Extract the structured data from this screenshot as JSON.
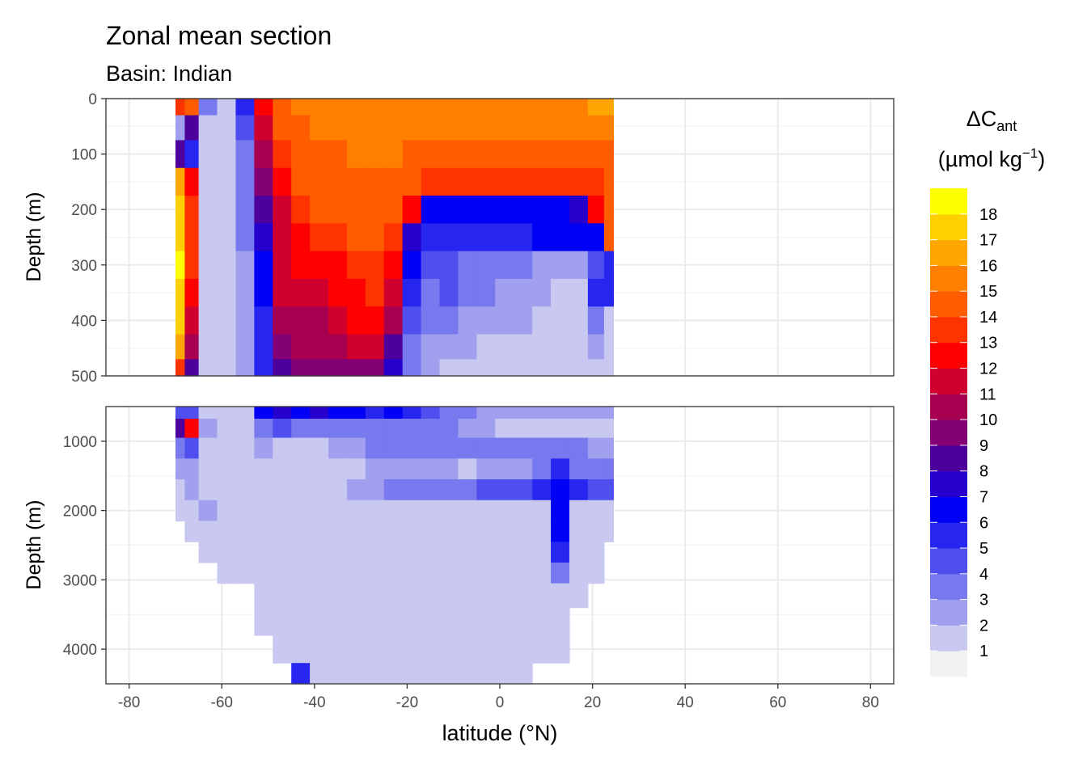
{
  "chart_data": {
    "type": "heatmap",
    "title": "Zonal mean section",
    "subtitle": "Basin: Indian",
    "xlabel": "latitude (°N)",
    "ylabel": "Depth (m)",
    "xlim": [
      -85,
      85
    ],
    "x_ticks": [
      -80,
      -60,
      -40,
      -20,
      0,
      20,
      40,
      60,
      80
    ],
    "panels": [
      {
        "ylim": [
          0,
          500
        ],
        "y_ticks": [
          0,
          100,
          200,
          300,
          400,
          500
        ],
        "lat": [
          -69,
          -67,
          -63,
          -59,
          -55,
          -51,
          -47,
          -43,
          -39,
          -35,
          -31,
          -27,
          -23,
          -19,
          -15,
          -11,
          -7,
          -3,
          1,
          5,
          9,
          13,
          17,
          21,
          24
        ],
        "depth": [
          10,
          50,
          100,
          150,
          200,
          250,
          300,
          350,
          400,
          450,
          490
        ],
        "z": [
          [
            13,
            14,
            3,
            1,
            5,
            12,
            14,
            15,
            15,
            15,
            15,
            15,
            15,
            15,
            15,
            15,
            15,
            15,
            15,
            15,
            15,
            15,
            15,
            16,
            16
          ],
          [
            2,
            8,
            1,
            1,
            4,
            11,
            14,
            14,
            15,
            15,
            15,
            15,
            15,
            15,
            15,
            15,
            15,
            15,
            15,
            15,
            15,
            15,
            15,
            15,
            15
          ],
          [
            8,
            5,
            1,
            1,
            3,
            10,
            13,
            14,
            14,
            14,
            15,
            15,
            15,
            14,
            14,
            14,
            14,
            14,
            14,
            14,
            14,
            14,
            14,
            14,
            14
          ],
          [
            16,
            12,
            1,
            1,
            3,
            9,
            12,
            14,
            14,
            14,
            14,
            14,
            14,
            14,
            13,
            13,
            13,
            13,
            13,
            13,
            13,
            13,
            13,
            13,
            14
          ],
          [
            17,
            13,
            1,
            1,
            3,
            8,
            11,
            13,
            14,
            14,
            14,
            14,
            14,
            12,
            6,
            6,
            6,
            6,
            6,
            6,
            6,
            6,
            7,
            12,
            14
          ],
          [
            17,
            13,
            1,
            1,
            3,
            7,
            11,
            12,
            13,
            13,
            14,
            14,
            13,
            7,
            5,
            5,
            5,
            5,
            5,
            5,
            6,
            6,
            6,
            6,
            14
          ],
          [
            18,
            13,
            1,
            1,
            2,
            6,
            11,
            12,
            12,
            12,
            13,
            13,
            12,
            6,
            4,
            4,
            3,
            3,
            3,
            3,
            2,
            2,
            2,
            4,
            5
          ],
          [
            17,
            12,
            1,
            1,
            2,
            6,
            11,
            11,
            11,
            12,
            12,
            13,
            11,
            5,
            3,
            4,
            3,
            3,
            2,
            2,
            2,
            1,
            1,
            5,
            5
          ],
          [
            17,
            11,
            1,
            1,
            2,
            5,
            10,
            10,
            10,
            11,
            12,
            12,
            10,
            4,
            3,
            3,
            2,
            2,
            2,
            2,
            1,
            1,
            1,
            3,
            1
          ],
          [
            16,
            10,
            1,
            1,
            2,
            5,
            9,
            10,
            10,
            10,
            11,
            11,
            8,
            3,
            2,
            2,
            2,
            1,
            1,
            1,
            1,
            1,
            1,
            2,
            1
          ],
          [
            13,
            8,
            1,
            1,
            2,
            5,
            8,
            9,
            9,
            9,
            9,
            9,
            7,
            3,
            2,
            1,
            1,
            1,
            1,
            1,
            1,
            1,
            1,
            1,
            1
          ]
        ]
      },
      {
        "ylim": [
          500,
          4500
        ],
        "y_ticks": [
          1000,
          2000,
          3000,
          4000
        ],
        "lat": [
          -69,
          -67,
          -63,
          -59,
          -55,
          -51,
          -47,
          -43,
          -39,
          -35,
          -31,
          -27,
          -23,
          -19,
          -15,
          -11,
          -7,
          -3,
          1,
          5,
          9,
          13,
          17,
          21,
          24
        ],
        "depth": [
          550,
          800,
          1100,
          1400,
          1700,
          2000,
          2300,
          2600,
          2900,
          3200,
          3600,
          4000,
          4400
        ],
        "z": [
          [
            4,
            4,
            1,
            1,
            1,
            6,
            7,
            6,
            7,
            6,
            6,
            5,
            6,
            5,
            4,
            3,
            3,
            2,
            2,
            2,
            2,
            2,
            2,
            2,
            2
          ],
          [
            8,
            12,
            2,
            1,
            1,
            3,
            4,
            3,
            3,
            3,
            3,
            3,
            3,
            3,
            3,
            3,
            2,
            2,
            1,
            1,
            1,
            1,
            1,
            1,
            1
          ],
          [
            3,
            4,
            1,
            1,
            1,
            2,
            1,
            1,
            1,
            2,
            2,
            3,
            3,
            3,
            3,
            3,
            3,
            3,
            3,
            3,
            3,
            3,
            3,
            2,
            2
          ],
          [
            2,
            2,
            1,
            1,
            1,
            1,
            1,
            1,
            1,
            1,
            1,
            2,
            2,
            2,
            2,
            2,
            1,
            2,
            2,
            2,
            3,
            5,
            3,
            3,
            3
          ],
          [
            1,
            2,
            1,
            1,
            1,
            1,
            1,
            1,
            1,
            1,
            2,
            2,
            3,
            3,
            3,
            3,
            3,
            4,
            4,
            4,
            5,
            6,
            5,
            4,
            4
          ],
          [
            1,
            1,
            2,
            1,
            1,
            1,
            1,
            1,
            1,
            1,
            1,
            1,
            1,
            1,
            1,
            1,
            1,
            1,
            1,
            1,
            1,
            6,
            1,
            1,
            1
          ],
          [
            0,
            1,
            1,
            1,
            1,
            1,
            1,
            1,
            1,
            1,
            1,
            1,
            1,
            1,
            1,
            1,
            1,
            1,
            1,
            1,
            1,
            6,
            1,
            1,
            1
          ],
          [
            0,
            0,
            1,
            1,
            1,
            1,
            1,
            1,
            1,
            1,
            1,
            1,
            1,
            1,
            1,
            1,
            1,
            1,
            1,
            1,
            1,
            5,
            1,
            1,
            0
          ],
          [
            0,
            0,
            0,
            1,
            1,
            1,
            1,
            1,
            1,
            1,
            1,
            1,
            1,
            1,
            1,
            1,
            1,
            1,
            1,
            1,
            1,
            3,
            1,
            1,
            0
          ],
          [
            0,
            0,
            0,
            0,
            0,
            1,
            1,
            1,
            1,
            1,
            1,
            1,
            1,
            1,
            1,
            1,
            1,
            1,
            1,
            1,
            1,
            1,
            1,
            0,
            0
          ],
          [
            0,
            0,
            0,
            0,
            0,
            1,
            1,
            1,
            1,
            1,
            1,
            1,
            1,
            1,
            1,
            1,
            1,
            1,
            1,
            1,
            1,
            1,
            0,
            0,
            0
          ],
          [
            0,
            0,
            0,
            0,
            0,
            0,
            1,
            1,
            1,
            1,
            1,
            1,
            1,
            1,
            1,
            1,
            1,
            1,
            1,
            1,
            1,
            1,
            0,
            0,
            0
          ],
          [
            0,
            0,
            0,
            0,
            0,
            0,
            0,
            5,
            1,
            1,
            1,
            1,
            1,
            1,
            1,
            1,
            1,
            1,
            1,
            1,
            0,
            0,
            0,
            0,
            0
          ]
        ]
      }
    ],
    "legend": {
      "title_main": "ΔC",
      "title_sub": "ant",
      "unit_prefix": "(µmol kg",
      "unit_sup": "−1",
      "unit_suffix": ")",
      "levels": [
        1,
        2,
        3,
        4,
        5,
        6,
        7,
        8,
        9,
        10,
        11,
        12,
        13,
        14,
        15,
        16,
        17,
        18
      ],
      "colors": [
        "#f2f2f2",
        "#c8c8f0",
        "#a0a0ef",
        "#7878ef",
        "#4f4fef",
        "#2626f0",
        "#0000f5",
        "#2600cc",
        "#4d009c",
        "#830075",
        "#a80050",
        "#d0002e",
        "#ff0000",
        "#ff3300",
        "#ff5c00",
        "#ff8000",
        "#ffa700",
        "#ffd000",
        "#ffff00"
      ]
    }
  }
}
